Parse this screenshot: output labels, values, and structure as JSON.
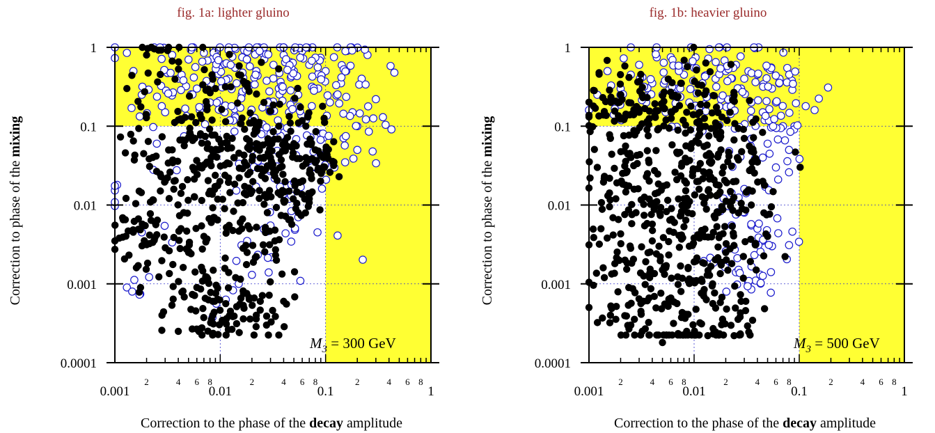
{
  "chart_data": [
    {
      "type": "scatter",
      "title": "fig. 1a: lighter gluino",
      "xlabel": {
        "prefix": "Correction to the phase of the ",
        "bold": "decay",
        "suffix": " amplitude"
      },
      "ylabel": {
        "prefix": "Correction to phase of the ",
        "bold": "mixing",
        "suffix": ""
      },
      "xscale": "log",
      "yscale": "log",
      "xlim": [
        0.001,
        1
      ],
      "ylim": [
        0.0001,
        1
      ],
      "xticks": [
        "0.001",
        "0.01",
        "0.1",
        "1"
      ],
      "yticks": [
        "0.0001",
        "0.001",
        "0.01",
        "0.1",
        "1"
      ],
      "minor_tick_labels": [
        "2",
        "4",
        "6",
        "8"
      ],
      "grid": "dotted at decades",
      "shaded_regions": [
        {
          "x": [
            0.001,
            1
          ],
          "y": [
            0.1,
            1
          ],
          "color": "#ffff33"
        },
        {
          "x": [
            0.1,
            1
          ],
          "y": [
            0.0001,
            1
          ],
          "color": "#ffff33"
        }
      ],
      "annotation": {
        "symbol": "M",
        "subscript": "3",
        "text": " = 300 GeV"
      },
      "series": [
        {
          "marker": "filled black circle",
          "color": "#000000",
          "approx_count": 600,
          "points": [
            [
              0.0013,
              0.3
            ],
            [
              0.0015,
              0.065
            ],
            [
              0.002,
              0.8
            ],
            [
              0.0017,
              0.015
            ],
            [
              0.0012,
              0.0065
            ],
            [
              0.0011,
              0.0038
            ],
            [
              0.0016,
              0.0016
            ],
            [
              0.0025,
              0.0042
            ],
            [
              0.003,
              0.02
            ],
            [
              0.0035,
              0.05
            ],
            [
              0.004,
              0.12
            ],
            [
              0.0045,
              0.008
            ],
            [
              0.005,
              0.0025
            ],
            [
              0.0055,
              0.03
            ],
            [
              0.006,
              0.0009
            ],
            [
              0.0065,
              0.08
            ],
            [
              0.007,
              0.004
            ],
            [
              0.0075,
              0.18
            ],
            [
              0.008,
              0.015
            ],
            [
              0.0085,
              0.0006
            ],
            [
              0.009,
              0.3
            ],
            [
              0.0095,
              0.05
            ],
            [
              0.011,
              0.009
            ],
            [
              0.012,
              0.022
            ],
            [
              0.013,
              0.07
            ],
            [
              0.014,
              0.0012
            ],
            [
              0.015,
              0.45
            ],
            [
              0.016,
              0.005
            ],
            [
              0.017,
              0.035
            ],
            [
              0.018,
              0.0025
            ],
            [
              0.019,
              0.11
            ],
            [
              0.02,
              0.015
            ],
            [
              0.022,
              0.06
            ],
            [
              0.024,
              0.0006
            ],
            [
              0.026,
              0.2
            ],
            [
              0.028,
              0.008
            ],
            [
              0.03,
              0.04
            ],
            [
              0.033,
              0.0035
            ],
            [
              0.036,
              0.1
            ],
            [
              0.04,
              0.0006
            ],
            [
              0.045,
              0.015
            ],
            [
              0.05,
              0.06
            ],
            [
              0.055,
              0.008
            ],
            [
              0.06,
              0.02
            ],
            [
              0.065,
              0.1
            ],
            [
              0.07,
              0.012
            ],
            [
              0.08,
              0.05
            ],
            [
              0.095,
              0.04
            ],
            [
              0.11,
              0.026
            ],
            [
              0.12,
              0.035
            ],
            [
              0.0028,
              0.0004
            ],
            [
              0.004,
              0.00025
            ],
            [
              0.0065,
              0.00027
            ],
            [
              0.0085,
              0.0004
            ],
            [
              0.0125,
              0.00045
            ],
            [
              0.022,
              0.0004
            ],
            [
              0.0275,
              0.0003
            ]
          ]
        },
        {
          "marker": "open blue circle",
          "color": "#1a1acc",
          "approx_count": 350,
          "points": [
            [
              0.00105,
              0.018
            ],
            [
              0.0013,
              0.85
            ],
            [
              0.0015,
              0.5
            ],
            [
              0.0018,
              0.25
            ],
            [
              0.0013,
              0.0009
            ],
            [
              0.0018,
              0.0045
            ],
            [
              0.0025,
              0.06
            ],
            [
              0.003,
              0.15
            ],
            [
              0.0035,
              0.8
            ],
            [
              0.004,
              0.4
            ],
            [
              0.005,
              0.7
            ],
            [
              0.006,
              0.3
            ],
            [
              0.007,
              0.85
            ],
            [
              0.008,
              0.2
            ],
            [
              0.009,
              0.9
            ],
            [
              0.01,
              0.6
            ],
            [
              0.011,
              0.15
            ],
            [
              0.012,
              0.4
            ],
            [
              0.014,
              0.95
            ],
            [
              0.016,
              0.25
            ],
            [
              0.018,
              0.7
            ],
            [
              0.02,
              0.12
            ],
            [
              0.022,
              0.5
            ],
            [
              0.025,
              0.85
            ],
            [
              0.028,
              0.2
            ],
            [
              0.032,
              0.6
            ],
            [
              0.036,
              0.3
            ],
            [
              0.04,
              0.8
            ],
            [
              0.045,
              0.15
            ],
            [
              0.05,
              0.5
            ],
            [
              0.055,
              0.25
            ],
            [
              0.06,
              0.9
            ],
            [
              0.065,
              0.12
            ],
            [
              0.07,
              0.6
            ],
            [
              0.075,
              1.0
            ],
            [
              0.085,
              0.3
            ],
            [
              0.09,
              0.08
            ],
            [
              0.1,
              0.5
            ],
            [
              0.11,
              0.2
            ],
            [
              0.12,
              0.75
            ],
            [
              0.14,
              0.35
            ],
            [
              0.16,
              0.9
            ],
            [
              0.18,
              0.15
            ],
            [
              0.2,
              0.05
            ],
            [
              0.22,
              0.4
            ],
            [
              0.25,
              0.8
            ],
            [
              0.3,
              0.22
            ],
            [
              0.35,
              0.13
            ],
            [
              0.2,
              0.1
            ],
            [
              0.13,
              0.0041
            ],
            [
              0.055,
              0.007
            ],
            [
              0.018,
              0.0035
            ],
            [
              0.015,
              0.001
            ],
            [
              0.02,
              0.0013
            ],
            [
              0.03,
              0.0055
            ],
            [
              0.08,
              0.03
            ],
            [
              0.03,
              0.08
            ],
            [
              0.02,
              0.05
            ],
            [
              0.025,
              0.03
            ],
            [
              0.045,
              0.012
            ]
          ]
        }
      ]
    },
    {
      "type": "scatter",
      "title": "fig. 1b: heavier gluino",
      "xlabel": {
        "prefix": "Correction to the phase of the ",
        "bold": "decay",
        "suffix": " amplitude"
      },
      "ylabel": {
        "prefix": "Correction to phase of the ",
        "bold": "mixing",
        "suffix": ""
      },
      "xscale": "log",
      "yscale": "log",
      "xlim": [
        0.001,
        1
      ],
      "ylim": [
        0.0001,
        1
      ],
      "xticks": [
        "0.001",
        "0.01",
        "0.1",
        "1"
      ],
      "yticks": [
        "0.0001",
        "0.001",
        "0.01",
        "0.1",
        "1"
      ],
      "minor_tick_labels": [
        "2",
        "4",
        "6",
        "8"
      ],
      "grid": "dotted at decades",
      "shaded_regions": [
        {
          "x": [
            0.001,
            1
          ],
          "y": [
            0.1,
            1
          ],
          "color": "#ffff33"
        },
        {
          "x": [
            0.1,
            1
          ],
          "y": [
            0.0001,
            1
          ],
          "color": "#ffff33"
        }
      ],
      "annotation": {
        "symbol": "M",
        "subscript": "3",
        "text": " = 500 GeV"
      },
      "series": [
        {
          "marker": "filled black circle",
          "color": "#000000",
          "approx_count": 650,
          "points": [
            [
              0.0011,
              0.18
            ],
            [
              0.0012,
              0.03
            ],
            [
              0.0013,
              0.005
            ],
            [
              0.0014,
              0.0012
            ],
            [
              0.0016,
              0.07
            ],
            [
              0.0018,
              0.012
            ],
            [
              0.002,
              0.25
            ],
            [
              0.0022,
              0.002
            ],
            [
              0.0025,
              0.04
            ],
            [
              0.0028,
              0.008
            ],
            [
              0.003,
              0.15
            ],
            [
              0.0033,
              0.0006
            ],
            [
              0.0036,
              0.025
            ],
            [
              0.004,
              0.0035
            ],
            [
              0.0045,
              0.09
            ],
            [
              0.005,
              0.0015
            ],
            [
              0.0055,
              0.018
            ],
            [
              0.006,
              0.27
            ],
            [
              0.0065,
              0.006
            ],
            [
              0.007,
              0.045
            ],
            [
              0.0075,
              0.0008
            ],
            [
              0.008,
              0.012
            ],
            [
              0.0085,
              0.15
            ],
            [
              0.009,
              0.003
            ],
            [
              0.0095,
              0.06
            ],
            [
              0.011,
              0.02
            ],
            [
              0.012,
              0.0045
            ],
            [
              0.013,
              0.28
            ],
            [
              0.014,
              0.035
            ],
            [
              0.015,
              0.001
            ],
            [
              0.016,
              0.11
            ],
            [
              0.017,
              0.008
            ],
            [
              0.018,
              0.05
            ],
            [
              0.02,
              0.0025
            ],
            [
              0.022,
              0.15
            ],
            [
              0.025,
              0.02
            ],
            [
              0.028,
              0.0006
            ],
            [
              0.03,
              0.07
            ],
            [
              0.035,
              0.01
            ],
            [
              0.04,
              0.035
            ],
            [
              0.045,
              0.02
            ],
            [
              0.05,
              0.004
            ],
            [
              0.0016,
              0.0004
            ],
            [
              0.0025,
              0.0003
            ],
            [
              0.005,
              0.00018
            ],
            [
              0.0085,
              0.00025
            ],
            [
              0.0135,
              0.00022
            ],
            [
              0.024,
              0.00022
            ],
            [
              0.0105,
              0.0011
            ]
          ]
        },
        {
          "marker": "open blue circle",
          "color": "#1a1acc",
          "approx_count": 250,
          "points": [
            [
              0.001,
              0.16
            ],
            [
              0.0012,
              0.25
            ],
            [
              0.0015,
              0.5
            ],
            [
              0.002,
              0.3
            ],
            [
              0.0025,
              0.45
            ],
            [
              0.003,
              0.6
            ],
            [
              0.0035,
              0.2
            ],
            [
              0.004,
              0.35
            ],
            [
              0.005,
              0.25
            ],
            [
              0.006,
              0.75
            ],
            [
              0.007,
              0.3
            ],
            [
              0.008,
              0.45
            ],
            [
              0.009,
              0.2
            ],
            [
              0.01,
              0.55
            ],
            [
              0.012,
              0.35
            ],
            [
              0.014,
              0.95
            ],
            [
              0.016,
              0.4
            ],
            [
              0.018,
              0.22
            ],
            [
              0.02,
              0.5
            ],
            [
              0.022,
              0.15
            ],
            [
              0.025,
              0.6
            ],
            [
              0.028,
              0.3
            ],
            [
              0.03,
              0.4
            ],
            [
              0.035,
              0.2
            ],
            [
              0.04,
              0.45
            ],
            [
              0.045,
              0.15
            ],
            [
              0.05,
              0.55
            ],
            [
              0.055,
              0.3
            ],
            [
              0.06,
              0.2
            ],
            [
              0.065,
              0.4
            ],
            [
              0.07,
              0.1
            ],
            [
              0.08,
              0.05
            ],
            [
              0.09,
              0.1
            ],
            [
              0.085,
              0.38
            ],
            [
              0.05,
              0.06
            ],
            [
              0.045,
              0.04
            ],
            [
              0.06,
              0.03
            ],
            [
              0.14,
              0.16
            ],
            [
              0.03,
              0.008
            ],
            [
              0.035,
              0.0055
            ],
            [
              0.04,
              0.005
            ],
            [
              0.045,
              0.0035
            ],
            [
              0.055,
              0.003
            ],
            [
              0.08,
              0.0031
            ],
            [
              0.025,
              0.0014
            ],
            [
              0.035,
              0.00085
            ],
            [
              0.02,
              0.0026
            ],
            [
              0.03,
              0.016
            ]
          ]
        }
      ]
    }
  ]
}
